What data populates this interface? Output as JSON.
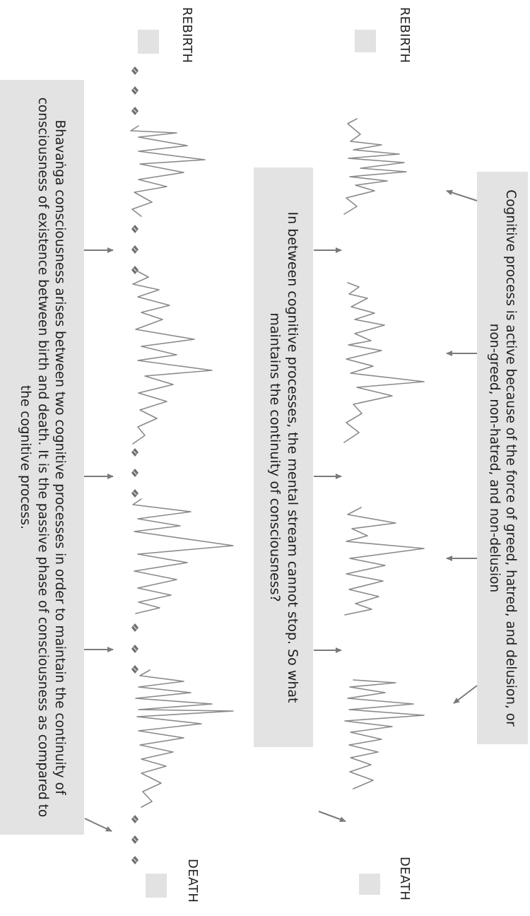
{
  "top_diagram": {
    "rebirth_label": "REBIRTH",
    "death_label": "DEATH",
    "box1_text": "Cognitive process is active because of the force of greed, hatred, and delusion, or non-greed, non-hatred, and non-delusion",
    "box2_text": "In between cognitive processes, the mental stream cannot stop. So what maintains the continuity of consciousness?"
  },
  "bottom_diagram": {
    "rebirth_label": "REBIRTH",
    "death_label": "DEATH",
    "box3_text": "Bhavaṅga consciousness arises between two cognitive processes in order to maintain the continuity of consciousness of existence between birth and death. It is the passive phase of consciousness as compared to the cognitive process."
  },
  "colors": {
    "box": "#e3e3e3",
    "wave": "#8a8a8a",
    "arrow": "#7a7a7a",
    "dot": "#6e6e6e",
    "text": "#1e1e1e"
  }
}
